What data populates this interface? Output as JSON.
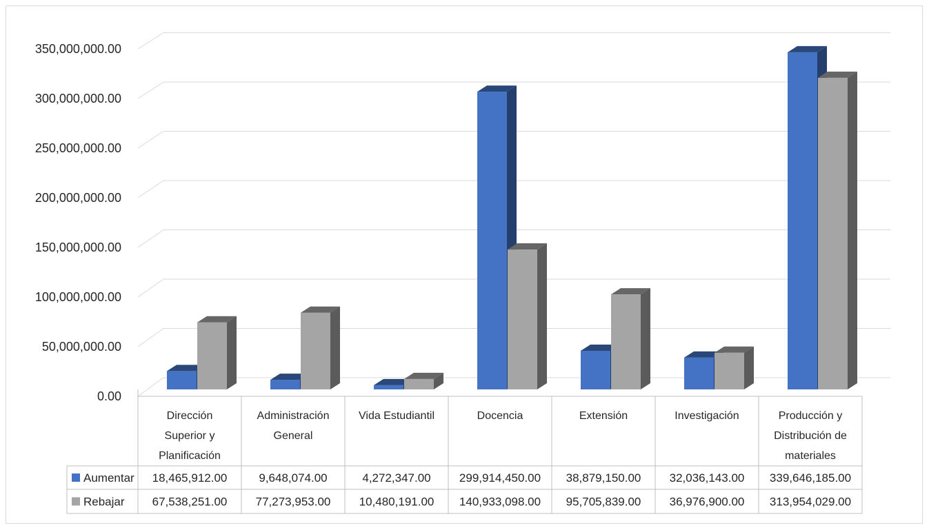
{
  "chart_data": {
    "type": "bar",
    "variant": "3d-clustered-column-with-data-table",
    "categories": [
      [
        "Dirección",
        "Superior y",
        "Planificación"
      ],
      [
        "Administración",
        "General"
      ],
      [
        "Vida Estudiantil"
      ],
      [
        "Docencia"
      ],
      [
        "Extensión"
      ],
      [
        "Investigación"
      ],
      [
        "Producción y",
        "Distribución de",
        "materiales"
      ]
    ],
    "series": [
      {
        "name": "Aumentar",
        "color": "#4472c4",
        "values": [
          18465912,
          9648074,
          4272347,
          299914450,
          38879150,
          32036143,
          339646185
        ],
        "labels": [
          "18,465,912.00",
          "9,648,074.00",
          "4,272,347.00",
          "299,914,450.00",
          "38,879,150.00",
          "32,036,143.00",
          "339,646,185.00"
        ]
      },
      {
        "name": "Rebajar",
        "color": "#a5a5a5",
        "values": [
          67538251,
          77273953,
          10480191,
          140933098,
          95705839,
          36976900,
          313954029
        ],
        "labels": [
          "67,538,251.00",
          "77,273,953.00",
          "10,480,191.00",
          "140,933,098.00",
          "95,705,839.00",
          "36,976,900.00",
          "313,954,029.00"
        ]
      }
    ],
    "yticks": [
      "0.00",
      "50,000,000.00",
      "100,000,000.00",
      "150,000,000.00",
      "200,000,000.00",
      "250,000,000.00",
      "300,000,000.00",
      "350,000,000.00"
    ],
    "ylim": [
      0,
      350000000
    ],
    "grid": true,
    "legend": "data-table"
  }
}
